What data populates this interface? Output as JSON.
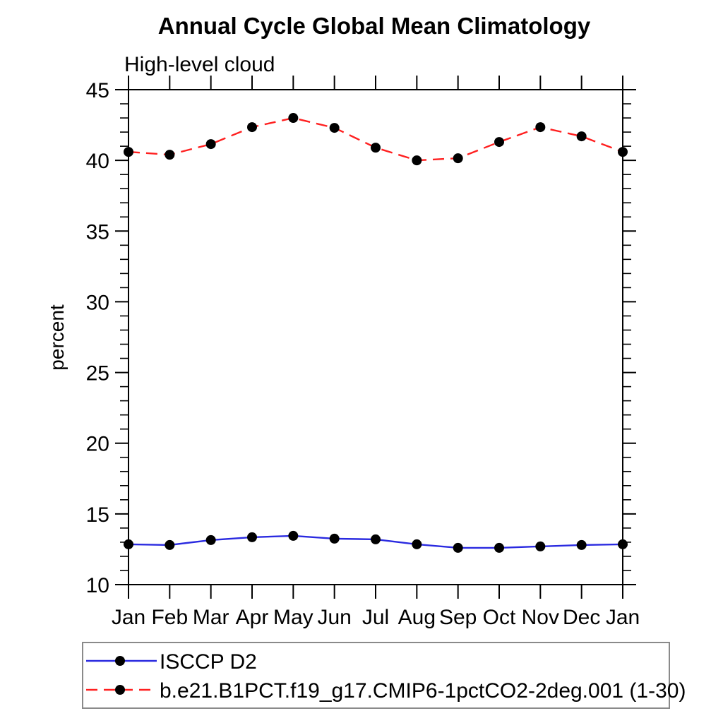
{
  "page": {
    "background_color": "#ffffff",
    "text_color": "#000000"
  },
  "chart_data": {
    "type": "line",
    "title": "Annual Cycle Global Mean Climatology",
    "subtitle": "High-level cloud",
    "xlabel": "",
    "ylabel": "percent",
    "x_tick_labels": [
      "Jan",
      "Feb",
      "Mar",
      "Apr",
      "May",
      "Jun",
      "Jul",
      "Aug",
      "Sep",
      "Oct",
      "Nov",
      "Dec",
      "Jan"
    ],
    "ylim": [
      10,
      45
    ],
    "y_major_tick_step": 5,
    "y_minor_tick_step": 1,
    "y_major_tick_labels": [
      "10",
      "15",
      "20",
      "25",
      "30",
      "35",
      "40",
      "45"
    ],
    "grid": false,
    "legend_position": "boxed legend below plot, left-aligned",
    "series": [
      {
        "name": "ISCCP D2",
        "line_color": "#2a2ae0",
        "line_style": "solid",
        "marker": "filled-circle",
        "marker_color": "#000000",
        "values": [
          12.85,
          12.8,
          13.15,
          13.35,
          13.45,
          13.25,
          13.2,
          12.85,
          12.6,
          12.6,
          12.7,
          12.8,
          12.85
        ]
      },
      {
        "name": "b.e21.B1PCT.f19_g17.CMIP6-1pctCO2-2deg.001 (1-30)",
        "line_color": "#ff2020",
        "line_style": "dashed",
        "marker": "filled-circle",
        "marker_color": "#000000",
        "values": [
          40.6,
          40.4,
          41.15,
          42.35,
          43.0,
          42.3,
          40.9,
          40.0,
          40.15,
          41.3,
          42.35,
          41.7,
          40.6
        ]
      }
    ]
  }
}
